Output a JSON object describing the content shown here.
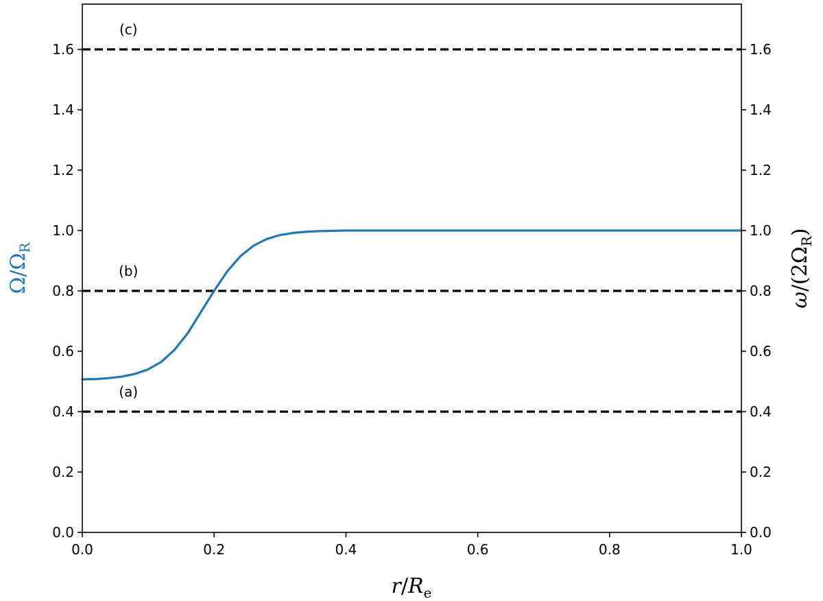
{
  "chart_data": {
    "type": "line",
    "title": "",
    "xlabel": {
      "main": "r",
      "slash": "/",
      "var": "R",
      "sub": "e"
    },
    "ylabel_left": {
      "main": "Ω",
      "slash": "/",
      "var": "Ω",
      "sub": "R"
    },
    "ylabel_right": {
      "main": "ω",
      "slash": "/(2",
      "var": "Ω",
      "sub": "R",
      "close": ")"
    },
    "xlim": [
      0.0,
      1.0
    ],
    "ylim": [
      0.0,
      1.75
    ],
    "x_ticks": [
      "0.0",
      "0.2",
      "0.4",
      "0.6",
      "0.8",
      "1.0"
    ],
    "y_ticks": [
      "0.0",
      "0.2",
      "0.4",
      "0.6",
      "0.8",
      "1.0",
      "1.2",
      "1.4",
      "1.6"
    ],
    "y_ticks_right": [
      "0.0",
      "0.2",
      "0.4",
      "0.6",
      "0.8",
      "1.0",
      "1.2",
      "1.4",
      "1.6"
    ],
    "grid": false,
    "series": [
      {
        "color": "#1f77b4",
        "style": "solid",
        "x": [
          0.0,
          0.02,
          0.04,
          0.06,
          0.08,
          0.1,
          0.12,
          0.14,
          0.16,
          0.18,
          0.2,
          0.22,
          0.24,
          0.26,
          0.28,
          0.3,
          0.32,
          0.34,
          0.36,
          0.38,
          0.4,
          0.42,
          0.45,
          0.5,
          0.6,
          0.7,
          0.8,
          0.9,
          1.0
        ],
        "y": [
          0.507,
          0.508,
          0.511,
          0.516,
          0.525,
          0.54,
          0.565,
          0.605,
          0.66,
          0.73,
          0.8,
          0.865,
          0.915,
          0.95,
          0.972,
          0.985,
          0.992,
          0.996,
          0.998,
          0.999,
          1.0,
          1.0,
          1.0,
          1.0,
          1.0,
          1.0,
          1.0,
          1.0,
          1.0
        ]
      }
    ],
    "hlines": [
      {
        "y": 0.4,
        "color": "#000000",
        "style": "dashed",
        "label": "(a)",
        "label_x": 0.07
      },
      {
        "y": 0.8,
        "color": "#000000",
        "style": "dashed",
        "label": "(b)",
        "label_x": 0.07
      },
      {
        "y": 1.6,
        "color": "#000000",
        "style": "dashed",
        "label": "(c)",
        "label_x": 0.07
      }
    ],
    "colors": {
      "left_label": "#1f77b4",
      "right_label": "#000000"
    }
  }
}
